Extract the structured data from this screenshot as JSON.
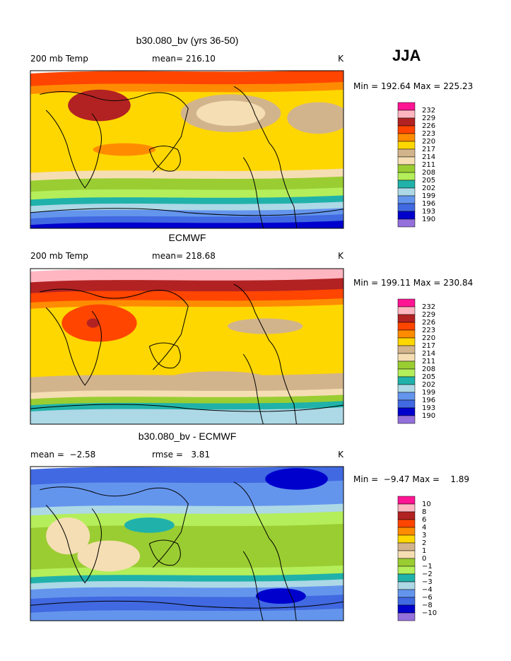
{
  "header": {
    "season": "JJA"
  },
  "colors": [
    "#ff1493",
    "#ffb6c1",
    "#b22222",
    "#ff4500",
    "#ff8c00",
    "#ffd700",
    "#d2b48c",
    "#f5deb3",
    "#9acd32",
    "#b4ee5a",
    "#20b2aa",
    "#add8e6",
    "#6495ed",
    "#4169e1",
    "#0000cd",
    "#9370db"
  ],
  "panels": [
    {
      "title": "b30.080_bv (yrs 36-50)",
      "left_label": "200 mb Temp",
      "center_label": "mean= 216.10",
      "right_label": "K",
      "min_max": "Min = 192.64 Max = 225.23",
      "colorbar_labels": [
        "232",
        "229",
        "226",
        "223",
        "220",
        "217",
        "214",
        "211",
        "208",
        "205",
        "202",
        "199",
        "196",
        "193",
        "190"
      ]
    },
    {
      "title": "ECMWF",
      "left_label": "200 mb Temp",
      "center_label": "mean= 218.68",
      "right_label": "K",
      "min_max": "Min = 199.11 Max = 230.84",
      "colorbar_labels": [
        "232",
        "229",
        "226",
        "223",
        "220",
        "217",
        "214",
        "211",
        "208",
        "205",
        "202",
        "199",
        "196",
        "193",
        "190"
      ]
    },
    {
      "title": "b30.080_bv - ECMWF",
      "left_label": "mean =  −2.58",
      "center_label": "rmse =   3.81",
      "right_label": "K",
      "min_max": "Min =  −9.47 Max =    1.89",
      "colorbar_labels": [
        "10",
        "8",
        "6",
        "4",
        "3",
        "2",
        "1",
        "0",
        "−1",
        "−2",
        "−3",
        "−4",
        "−6",
        "−8",
        "−10"
      ]
    }
  ]
}
